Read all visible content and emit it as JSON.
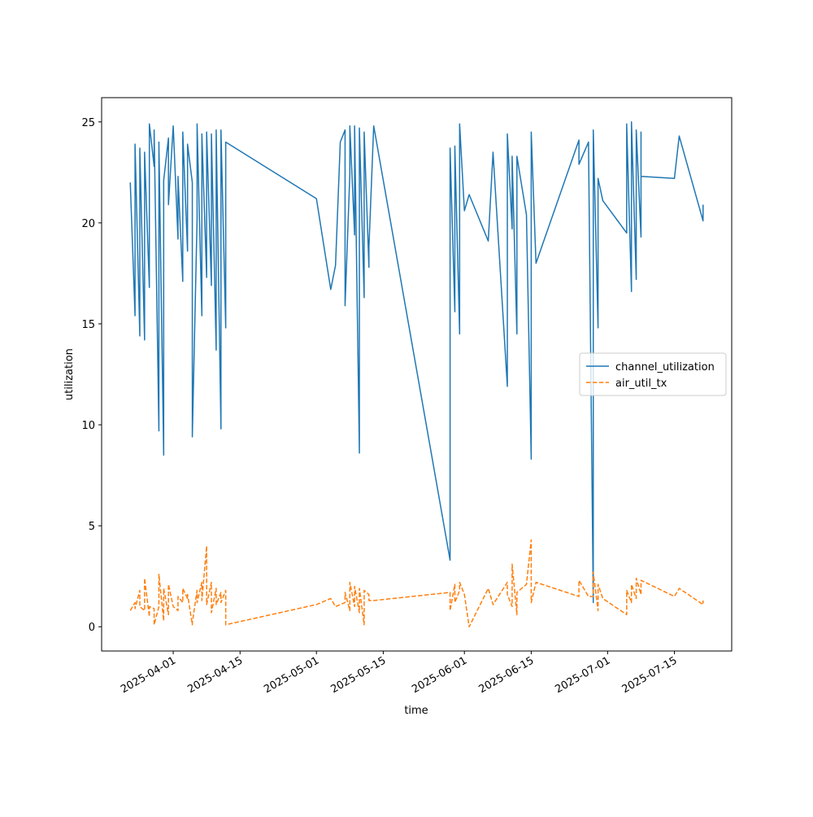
{
  "chart_data": {
    "type": "line",
    "x_label": "time",
    "y_label": "utilization",
    "x": [
      "2025-03-23",
      "2025-03-24",
      "2025-03-24",
      "2025-03-25",
      "2025-03-25",
      "2025-03-26",
      "2025-03-26",
      "2025-03-27",
      "2025-03-27",
      "2025-03-28",
      "2025-03-28",
      "2025-03-29",
      "2025-03-29",
      "2025-03-30",
      "2025-03-30",
      "2025-03-31",
      "2025-03-31",
      "2025-04-01",
      "2025-04-02",
      "2025-04-02",
      "2025-04-03",
      "2025-04-03",
      "2025-04-04",
      "2025-04-04",
      "2025-04-05",
      "2025-04-05",
      "2025-04-06",
      "2025-04-06",
      "2025-04-07",
      "2025-04-07",
      "2025-04-08",
      "2025-04-08",
      "2025-04-09",
      "2025-04-09",
      "2025-04-10",
      "2025-04-10",
      "2025-04-11",
      "2025-04-11",
      "2025-04-12",
      "2025-04-12",
      "2025-05-01",
      "2025-05-04",
      "2025-05-05",
      "2025-05-06",
      "2025-05-07",
      "2025-05-07",
      "2025-05-08",
      "2025-05-08",
      "2025-05-09",
      "2025-05-09",
      "2025-05-10",
      "2025-05-10",
      "2025-05-11",
      "2025-05-11",
      "2025-05-12",
      "2025-05-12",
      "2025-05-13",
      "2025-05-29",
      "2025-05-29",
      "2025-05-30",
      "2025-05-30",
      "2025-05-31",
      "2025-05-31",
      "2025-06-01",
      "2025-06-02",
      "2025-06-06",
      "2025-06-07",
      "2025-06-10",
      "2025-06-10",
      "2025-06-11",
      "2025-06-11",
      "2025-06-12",
      "2025-06-12",
      "2025-06-14",
      "2025-06-15",
      "2025-06-15",
      "2025-06-16",
      "2025-06-25",
      "2025-06-25",
      "2025-06-27",
      "2025-06-28",
      "2025-06-28",
      "2025-06-29",
      "2025-06-29",
      "2025-06-30",
      "2025-07-05",
      "2025-07-05",
      "2025-07-06",
      "2025-07-06",
      "2025-07-07",
      "2025-07-07",
      "2025-07-08",
      "2025-07-08",
      "2025-07-08",
      "2025-07-15",
      "2025-07-16",
      "2025-07-21",
      "2025-07-21"
    ],
    "series": [
      {
        "name": "channel_utilization",
        "color": "#1f77b4",
        "dashed": false,
        "values": [
          22.0,
          15.4,
          23.9,
          14.4,
          23.7,
          14.2,
          23.5,
          16.8,
          24.9,
          22.8,
          24.6,
          9.7,
          24.0,
          8.5,
          22.1,
          24.2,
          20.9,
          24.8,
          19.2,
          22.3,
          17.1,
          24.5,
          18.6,
          23.9,
          22.0,
          9.4,
          20.2,
          24.9,
          15.4,
          24.4,
          17.3,
          24.5,
          16.9,
          24.4,
          13.7,
          24.6,
          9.8,
          24.6,
          14.8,
          24.0,
          21.2,
          16.7,
          17.9,
          24.0,
          24.6,
          15.9,
          22.4,
          24.8,
          19.4,
          24.8,
          8.6,
          24.7,
          16.3,
          24.5,
          17.8,
          18.8,
          24.8,
          3.3,
          23.7,
          15.6,
          23.8,
          14.5,
          24.9,
          20.6,
          21.4,
          19.1,
          23.5,
          11.9,
          24.4,
          19.7,
          23.3,
          14.5,
          23.3,
          20.4,
          8.3,
          24.5,
          18.0,
          24.1,
          22.9,
          24.0,
          1.2,
          24.6,
          14.8,
          22.2,
          21.1,
          19.5,
          24.9,
          16.6,
          25.0,
          17.2,
          24.6,
          19.3,
          24.5,
          22.3,
          22.2,
          24.3,
          20.1,
          20.9
        ]
      },
      {
        "name": "air_util_tx",
        "color": "#ff7f0e",
        "dashed": true,
        "values": [
          0.8,
          1.2,
          0.9,
          1.8,
          1.0,
          0.8,
          2.4,
          0.5,
          1.0,
          0.9,
          0.1,
          1.0,
          2.6,
          0.3,
          1.9,
          0.6,
          2.1,
          1.0,
          0.8,
          1.5,
          1.2,
          1.9,
          1.4,
          1.6,
          0.1,
          0.2,
          1.8,
          1.2,
          2.2,
          1.3,
          4.0,
          1.1,
          2.2,
          0.7,
          1.9,
          1.1,
          1.7,
          1.2,
          1.8,
          0.1,
          1.1,
          1.4,
          1.0,
          1.1,
          1.2,
          1.7,
          0.8,
          2.2,
          1.0,
          2.0,
          0.7,
          1.9,
          0.1,
          1.8,
          1.6,
          1.3,
          1.3,
          1.7,
          0.8,
          2.1,
          1.2,
          1.8,
          2.2,
          1.6,
          0.0,
          1.9,
          1.1,
          2.2,
          1.6,
          1.0,
          3.1,
          0.6,
          1.7,
          2.1,
          4.3,
          1.2,
          2.2,
          1.5,
          2.3,
          1.5,
          1.5,
          2.7,
          0.8,
          2.1,
          1.4,
          0.6,
          1.8,
          1.2,
          2.1,
          1.4,
          2.4,
          1.6,
          2.2,
          2.3,
          1.5,
          1.9,
          1.1,
          1.3
        ]
      }
    ],
    "xlim": [
      "2025-03-17",
      "2025-07-27"
    ],
    "xticks": [
      "2025-04-01",
      "2025-04-15",
      "2025-05-01",
      "2025-05-15",
      "2025-06-01",
      "2025-06-15",
      "2025-07-01",
      "2025-07-15"
    ],
    "ylim": [
      -1.2,
      26.2
    ],
    "yticks": [
      0,
      5,
      10,
      15,
      20,
      25
    ],
    "grid": false,
    "legend": "center right"
  }
}
